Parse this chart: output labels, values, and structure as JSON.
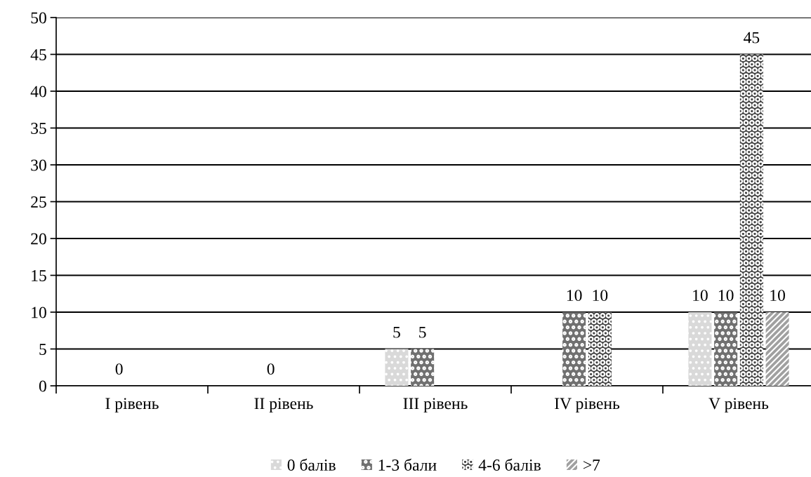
{
  "chart_data": {
    "type": "bar",
    "categories": [
      "I рівень",
      "II рівень",
      "III рівень",
      "IV рівень",
      "V рівень"
    ],
    "series": [
      {
        "name": "0 балів",
        "color": "#d9d9d9",
        "values": [
          null,
          null,
          5,
          null,
          10
        ]
      },
      {
        "name": "1-3 бали",
        "color": "#707070",
        "values": [
          0,
          0,
          5,
          10,
          10
        ]
      },
      {
        "name": "4-6 балів",
        "color": "#404040",
        "values": [
          null,
          null,
          null,
          10,
          45
        ]
      },
      {
        "name": ">7",
        "color": "#a0a0a0",
        "values": [
          null,
          null,
          null,
          null,
          10
        ]
      }
    ],
    "ylim": [
      0,
      50
    ],
    "yticks": [
      0,
      5,
      10,
      15,
      20,
      25,
      30,
      35,
      40,
      45,
      50
    ],
    "grid": "y",
    "legend": "bottom",
    "data_labels": true
  }
}
